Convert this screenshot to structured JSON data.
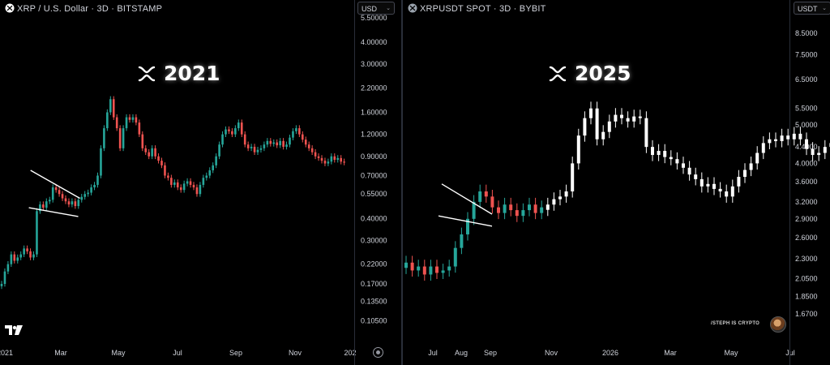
{
  "left": {
    "header": "XRP / U.S. Dollar · 3D · BITSTAMP",
    "currency": "USD",
    "big_title": "2021",
    "chart_data": {
      "type": "candlestick",
      "scale": "log",
      "ylim": [
        0.09,
        5.5
      ],
      "y_ticks": [
        "5.50000",
        "4.00000",
        "3.00000",
        "2.20000",
        "1.60000",
        "1.20000",
        "0.90000",
        "0.70000",
        "0.55000",
        "0.40000",
        "0.30000",
        "0.22000",
        "0.17000",
        "0.13500",
        "0.10500"
      ],
      "y_tick_values": [
        5.5,
        4.0,
        3.0,
        2.2,
        1.6,
        1.2,
        0.9,
        0.7,
        0.55,
        0.4,
        0.3,
        0.22,
        0.17,
        0.135,
        0.105
      ],
      "x_ticks": [
        "2021",
        "Mar",
        "May",
        "Jul",
        "Sep",
        "Nov",
        "202"
      ],
      "colors": {
        "up": "#26a69a",
        "down": "#ef5350"
      },
      "closes": [
        0.17,
        0.2,
        0.22,
        0.25,
        0.23,
        0.24,
        0.25,
        0.27,
        0.26,
        0.24,
        0.25,
        0.44,
        0.48,
        0.46,
        0.5,
        0.51,
        0.6,
        0.58,
        0.55,
        0.52,
        0.5,
        0.48,
        0.5,
        0.47,
        0.51,
        0.53,
        0.55,
        0.56,
        0.6,
        0.62,
        0.7,
        1.0,
        1.3,
        1.6,
        1.9,
        1.5,
        1.3,
        1.0,
        1.3,
        1.5,
        1.45,
        1.5,
        1.4,
        1.2,
        1.0,
        0.95,
        0.9,
        1.0,
        0.9,
        0.85,
        0.8,
        0.7,
        0.68,
        0.62,
        0.64,
        0.6,
        0.58,
        0.63,
        0.65,
        0.62,
        0.6,
        0.55,
        0.62,
        0.68,
        0.7,
        0.75,
        0.8,
        0.9,
        1.05,
        1.2,
        1.28,
        1.25,
        1.2,
        1.3,
        1.4,
        1.2,
        1.05,
        1.0,
        1.02,
        0.95,
        0.98,
        1.0,
        1.05,
        1.1,
        1.06,
        1.08,
        1.04,
        1.1,
        1.02,
        1.05,
        1.15,
        1.25,
        1.3,
        1.2,
        1.12,
        1.05,
        1.0,
        0.95,
        0.9,
        0.88,
        0.85,
        0.82,
        0.84,
        0.9,
        0.86,
        0.88,
        0.84,
        0.83
      ],
      "annotations": [
        {
          "type": "trendline",
          "from": [
            17,
            0.75
          ],
          "to": [
            46,
            0.52
          ]
        },
        {
          "type": "trendline",
          "from": [
            16,
            0.46
          ],
          "to": [
            45,
            0.41
          ]
        }
      ]
    }
  },
  "right": {
    "header": "XRPUSDT SPOT · 3D · BYBIT",
    "currency": "USDT",
    "big_title": "2025",
    "watermark": "/STEPH IS CRYPTO",
    "chart_data": {
      "type": "candlestick",
      "scale": "log",
      "ylim": [
        1.5,
        9.3
      ],
      "y_ticks": [
        "8.5000",
        "7.5000",
        "6.5000",
        "5.5000",
        "5.0000",
        "4.4000",
        "4.0000",
        "3.6000",
        "3.2000",
        "2.9000",
        "2.6000",
        "2.3000",
        "2.0500",
        "1.8500",
        "1.6700"
      ],
      "y_tick_values": [
        8.5,
        7.5,
        6.5,
        5.5,
        5.0,
        4.4,
        4.0,
        3.6,
        3.2,
        2.9,
        2.6,
        2.3,
        2.05,
        1.85,
        1.67
      ],
      "x_ticks": [
        "Jul",
        "Aug",
        "Sep",
        "Nov",
        "2026",
        "Mar",
        "May",
        "Jul"
      ],
      "colors": {
        "up": "#26a69a",
        "down": "#ef5350",
        "projection": "#ffffff"
      },
      "closes": [
        2.25,
        2.15,
        2.2,
        2.1,
        2.2,
        2.12,
        2.15,
        2.2,
        2.45,
        2.65,
        2.9,
        3.2,
        3.4,
        3.3,
        3.1,
        3.0,
        3.15,
        3.05,
        2.95,
        3.05,
        3.15,
        3.0,
        3.1
      ],
      "projection_closes": [
        3.15,
        3.25,
        3.3,
        3.4,
        4.0,
        4.7,
        5.2,
        5.5,
        4.6,
        4.8,
        5.1,
        5.3,
        5.2,
        5.1,
        5.25,
        5.2,
        4.4,
        4.2,
        4.3,
        4.15,
        4.1,
        4.0,
        3.9,
        3.75,
        3.65,
        3.5,
        3.55,
        3.45,
        3.4,
        3.3,
        3.5,
        3.7,
        3.85,
        4.0,
        4.25,
        4.5,
        4.6,
        4.55,
        4.7,
        4.6,
        4.75,
        4.6,
        4.35,
        4.2,
        4.25,
        4.4,
        4.5,
        4.45,
        4.4,
        4.35,
        4.5,
        4.6,
        4.7,
        4.55,
        4.45,
        4.3,
        4.2,
        4.05,
        4.0,
        3.95,
        4.05,
        4.2,
        4.3
      ],
      "annotations": [
        {
          "type": "trendline",
          "from": [
            48,
            3.55
          ],
          "to": [
            110,
            2.98
          ]
        },
        {
          "type": "trendline",
          "from": [
            44,
            2.95
          ],
          "to": [
            110,
            2.78
          ]
        }
      ]
    }
  }
}
